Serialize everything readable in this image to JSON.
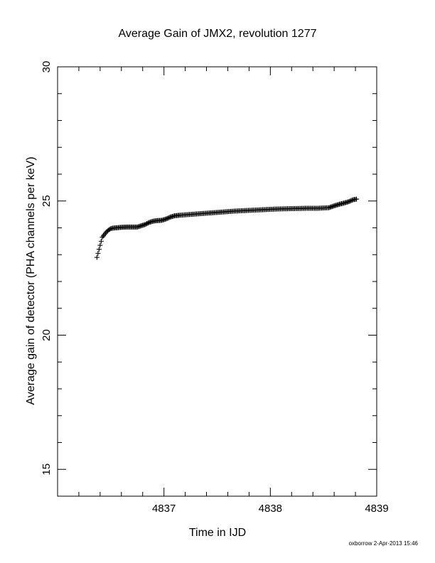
{
  "chart_data": {
    "type": "scatter",
    "title": "Average Gain of JMX2, revolution 1277",
    "xlabel": "Time in IJD",
    "ylabel": "Average gain of detector (PHA channels per keV)",
    "xlim": [
      4836.0,
      4839.0
    ],
    "ylim": [
      14.0,
      30.0
    ],
    "x_ticks": [
      "4837",
      "4838",
      "4839"
    ],
    "y_ticks": [
      "15",
      "20",
      "25",
      "30"
    ],
    "marker": "plus",
    "grid": false,
    "series": [
      {
        "x": [
          4836.37,
          4836.38,
          4836.39,
          4836.4,
          4836.41,
          4836.42,
          4836.44,
          4836.46,
          4836.48,
          4836.5,
          4836.52,
          4836.55,
          4836.6,
          4836.65,
          4836.7,
          4836.75,
          4836.78,
          4836.82,
          4836.86,
          4836.9,
          4836.94,
          4836.98,
          4837.02,
          4837.06,
          4837.1,
          4837.15,
          4837.25,
          4837.35,
          4837.45,
          4837.55,
          4837.65,
          4837.75,
          4837.85,
          4837.95,
          4838.05,
          4838.15,
          4838.25,
          4838.35,
          4838.45,
          4838.55,
          4838.6,
          4838.65,
          4838.7,
          4838.74,
          4838.78,
          4838.81
        ],
        "y": [
          22.9,
          23.05,
          23.2,
          23.35,
          23.5,
          23.65,
          23.75,
          23.85,
          23.92,
          23.97,
          23.99,
          24.0,
          24.02,
          24.03,
          24.03,
          24.03,
          24.07,
          24.12,
          24.2,
          24.25,
          24.27,
          24.28,
          24.33,
          24.4,
          24.45,
          24.47,
          24.5,
          24.53,
          24.56,
          24.59,
          24.62,
          24.64,
          24.66,
          24.68,
          24.7,
          24.71,
          24.72,
          24.73,
          24.73,
          24.75,
          24.82,
          24.88,
          24.93,
          24.98,
          25.05,
          25.07
        ]
      }
    ]
  },
  "footer": "oxborrow  2-Apr-2013 15:46"
}
